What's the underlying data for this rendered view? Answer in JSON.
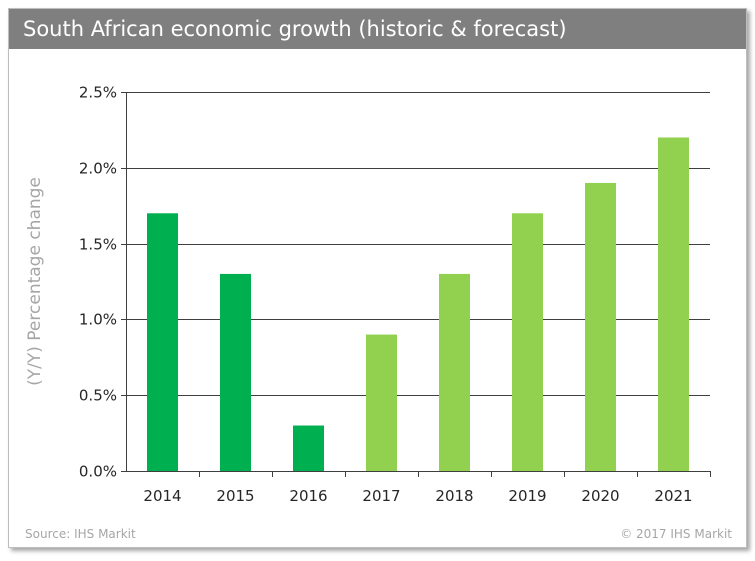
{
  "header": {
    "title": "South African economic growth (historic & forecast)"
  },
  "footer": {
    "source": "Source: IHS Markit",
    "copyright": "© 2017 IHS Markit"
  },
  "colors": {
    "historic": "#00b050",
    "forecast": "#92d050",
    "grid": "#3f3f3f",
    "axis_text": "#262626",
    "ylabel_text": "#a6a6a6",
    "title_bg": "#7f7f7f"
  },
  "chart_data": {
    "type": "bar",
    "title": "South African economic growth (historic & forecast)",
    "xlabel": "",
    "ylabel": "(Y/Y) Percentage change",
    "ylim": [
      0,
      2.5
    ],
    "yticks": [
      0,
      0.5,
      1.0,
      1.5,
      2.0,
      2.5
    ],
    "ytick_labels": [
      "0.0%",
      "0.5%",
      "1.0%",
      "1.5%",
      "2.0%",
      "2.5%"
    ],
    "grid": true,
    "categories": [
      "2014",
      "2015",
      "2016",
      "2017",
      "2018",
      "2019",
      "2020",
      "2021"
    ],
    "values": [
      1.7,
      1.3,
      0.3,
      0.9,
      1.3,
      1.7,
      1.9,
      2.2
    ],
    "bar_groups": [
      "historic",
      "historic",
      "historic",
      "forecast",
      "forecast",
      "forecast",
      "forecast",
      "forecast"
    ]
  }
}
